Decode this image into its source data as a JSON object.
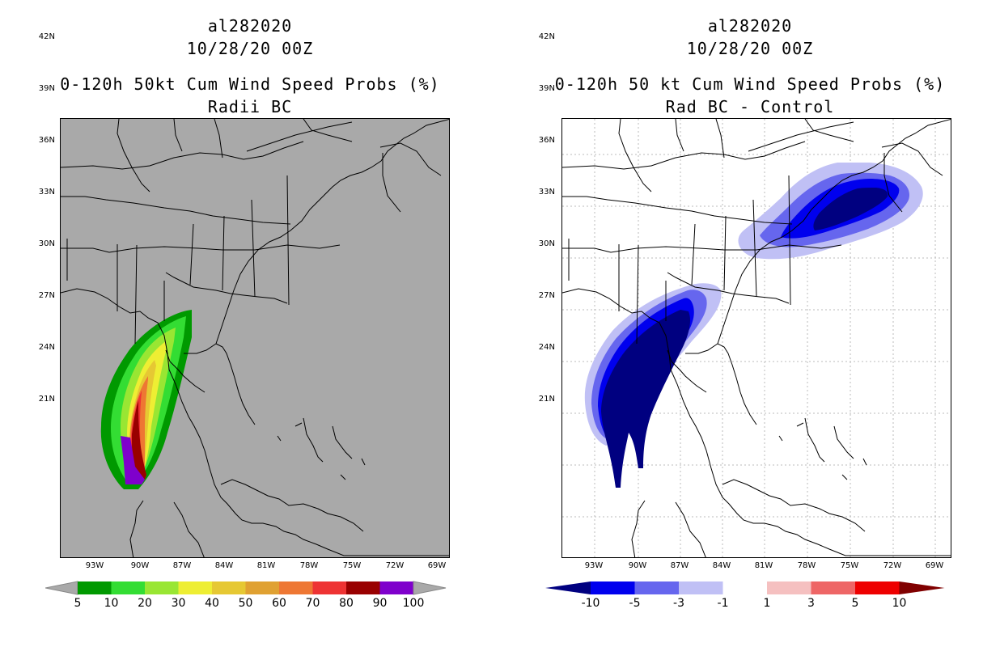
{
  "left": {
    "title_line1": "al282020",
    "title_line2": "10/28/20 00Z",
    "title_line3": "0-120h 50kt Cum Wind Speed Probs (%)",
    "title_line4": "Radii BC",
    "background": "#a9a9a9",
    "lat_labels": [
      "42N",
      "39N",
      "36N",
      "33N",
      "30N",
      "27N",
      "24N",
      "21N"
    ],
    "lon_labels": [
      "93W",
      "90W",
      "87W",
      "84W",
      "81W",
      "78W",
      "75W",
      "72W",
      "69W"
    ],
    "colorbar": {
      "labels": [
        "5",
        "10",
        "20",
        "30",
        "40",
        "50",
        "60",
        "70",
        "80",
        "90",
        "100"
      ],
      "colors": [
        "#009900",
        "#33dd33",
        "#99e633",
        "#eeee33",
        "#e6c833",
        "#e0a132",
        "#ee7733",
        "#ee3333",
        "#990000",
        "#7f00cc"
      ],
      "arrow_color": "#a9a9a9"
    }
  },
  "right": {
    "title_line1": "al282020",
    "title_line2": "10/28/20 00Z",
    "title_line3": "0-120h 50 kt Cum Wind Speed Probs (%)",
    "title_line4": "Rad BC - Control",
    "background": "#ffffff",
    "lat_labels": [
      "42N",
      "39N",
      "36N",
      "33N",
      "30N",
      "27N",
      "24N",
      "21N"
    ],
    "lon_labels": [
      "93W",
      "90W",
      "87W",
      "84W",
      "81W",
      "78W",
      "75W",
      "72W",
      "69W"
    ],
    "colorbar": {
      "labels": [
        "-10",
        "-5",
        "-3",
        "-1",
        "1",
        "3",
        "5",
        "10"
      ],
      "colors": [
        "#000080",
        "#0000ee",
        "#6666ee",
        "#c0c0f5",
        "#ffffff",
        "#f5c0c0",
        "#ee6666",
        "#ee0000",
        "#800000"
      ],
      "arrow_left": "#000080",
      "arrow_right": "#800000"
    }
  }
}
